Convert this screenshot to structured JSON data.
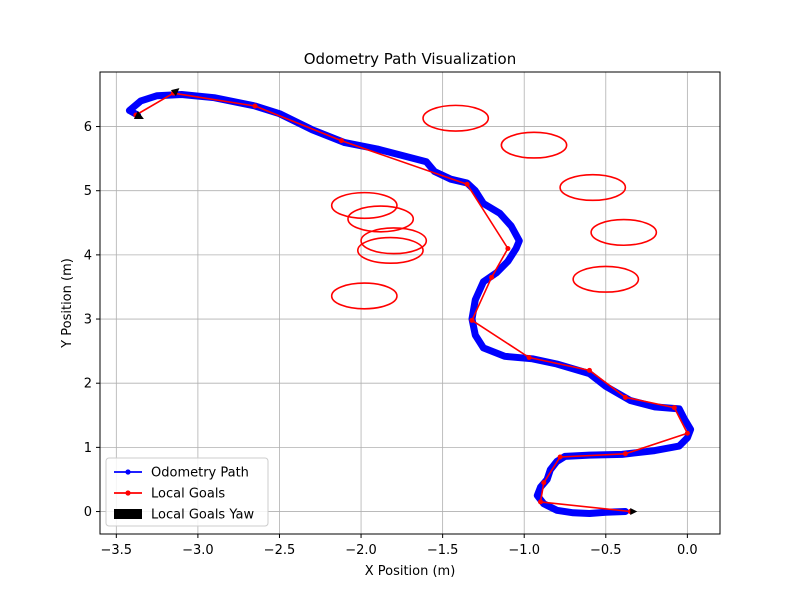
{
  "chart_data": {
    "type": "line",
    "title": "Odometry Path Visualization",
    "xlabel": "X Position (m)",
    "ylabel": "Y Position (m)",
    "xlim": [
      -3.6,
      0.2
    ],
    "ylim": [
      -0.35,
      6.85
    ],
    "xticks": [
      -3.5,
      -3.0,
      -2.5,
      -2.0,
      -1.5,
      -1.0,
      -0.5,
      0.0
    ],
    "xtick_labels": [
      "−3.5",
      "−3.0",
      "−2.5",
      "−2.0",
      "−1.5",
      "−1.0",
      "−0.5",
      "0.0"
    ],
    "yticks": [
      0,
      1,
      2,
      3,
      4,
      5,
      6
    ],
    "ytick_labels": [
      "0",
      "1",
      "2",
      "3",
      "4",
      "5",
      "6"
    ],
    "grid": true,
    "legend_position": "lower-left",
    "legend": [
      {
        "label": "Odometry Path",
        "color": "#0000ff",
        "kind": "line-marker"
      },
      {
        "label": "Local Goals",
        "color": "#ff0000",
        "kind": "line-marker"
      },
      {
        "label": "Local Goals Yaw",
        "color": "#000000",
        "kind": "patch"
      }
    ],
    "series": [
      {
        "name": "Odometry Path",
        "color": "#0000ff",
        "points": [
          [
            -0.38,
            0.0
          ],
          [
            -0.5,
            -0.01
          ],
          [
            -0.6,
            -0.03
          ],
          [
            -0.7,
            -0.02
          ],
          [
            -0.8,
            0.02
          ],
          [
            -0.88,
            0.12
          ],
          [
            -0.92,
            0.25
          ],
          [
            -0.9,
            0.38
          ],
          [
            -0.86,
            0.5
          ],
          [
            -0.84,
            0.65
          ],
          [
            -0.8,
            0.78
          ],
          [
            -0.75,
            0.86
          ],
          [
            -0.6,
            0.88
          ],
          [
            -0.4,
            0.89
          ],
          [
            -0.2,
            0.95
          ],
          [
            -0.05,
            1.02
          ],
          [
            0.0,
            1.15
          ],
          [
            0.02,
            1.28
          ],
          [
            -0.02,
            1.45
          ],
          [
            -0.05,
            1.6
          ],
          [
            -0.2,
            1.63
          ],
          [
            -0.35,
            1.73
          ],
          [
            -0.5,
            1.95
          ],
          [
            -0.6,
            2.15
          ],
          [
            -0.8,
            2.3
          ],
          [
            -0.95,
            2.38
          ],
          [
            -1.12,
            2.42
          ],
          [
            -1.25,
            2.55
          ],
          [
            -1.3,
            2.75
          ],
          [
            -1.32,
            3.0
          ],
          [
            -1.3,
            3.3
          ],
          [
            -1.25,
            3.58
          ],
          [
            -1.17,
            3.72
          ],
          [
            -1.1,
            3.9
          ],
          [
            -1.05,
            4.1
          ],
          [
            -1.03,
            4.22
          ],
          [
            -1.08,
            4.45
          ],
          [
            -1.15,
            4.65
          ],
          [
            -1.25,
            4.8
          ],
          [
            -1.3,
            5.0
          ],
          [
            -1.35,
            5.12
          ],
          [
            -1.45,
            5.18
          ],
          [
            -1.55,
            5.3
          ],
          [
            -1.6,
            5.45
          ],
          [
            -1.75,
            5.55
          ],
          [
            -1.9,
            5.65
          ],
          [
            -2.1,
            5.75
          ],
          [
            -2.3,
            5.95
          ],
          [
            -2.5,
            6.2
          ],
          [
            -2.65,
            6.32
          ],
          [
            -2.9,
            6.45
          ],
          [
            -3.1,
            6.5
          ],
          [
            -3.25,
            6.48
          ],
          [
            -3.35,
            6.4
          ],
          [
            -3.42,
            6.25
          ],
          [
            -3.37,
            6.18
          ]
        ]
      },
      {
        "name": "Local Goals",
        "color": "#ff0000",
        "points": [
          [
            -0.35,
            0.0
          ],
          [
            -0.9,
            0.15
          ],
          [
            -0.88,
            0.45
          ],
          [
            -0.78,
            0.85
          ],
          [
            -0.38,
            0.9
          ],
          [
            0.0,
            1.22
          ],
          [
            -0.08,
            1.62
          ],
          [
            -0.38,
            1.78
          ],
          [
            -0.6,
            2.2
          ],
          [
            -0.97,
            2.4
          ],
          [
            -1.32,
            2.98
          ],
          [
            -1.2,
            3.65
          ],
          [
            -1.1,
            4.1
          ],
          [
            -1.35,
            5.1
          ],
          [
            -2.12,
            5.78
          ],
          [
            -2.65,
            6.32
          ],
          [
            -3.15,
            6.52
          ],
          [
            -3.38,
            6.18
          ]
        ]
      }
    ],
    "obstacles": [
      {
        "cx": -1.42,
        "cy": 6.13,
        "rx": 0.2,
        "ry": 0.2
      },
      {
        "cx": -0.94,
        "cy": 5.71,
        "rx": 0.2,
        "ry": 0.2
      },
      {
        "cx": -0.58,
        "cy": 5.05,
        "rx": 0.2,
        "ry": 0.2
      },
      {
        "cx": -1.98,
        "cy": 4.77,
        "rx": 0.2,
        "ry": 0.2
      },
      {
        "cx": -1.88,
        "cy": 4.56,
        "rx": 0.2,
        "ry": 0.2
      },
      {
        "cx": -0.39,
        "cy": 4.35,
        "rx": 0.2,
        "ry": 0.2
      },
      {
        "cx": -1.8,
        "cy": 4.22,
        "rx": 0.2,
        "ry": 0.2
      },
      {
        "cx": -1.82,
        "cy": 4.07,
        "rx": 0.2,
        "ry": 0.2
      },
      {
        "cx": -0.5,
        "cy": 3.62,
        "rx": 0.2,
        "ry": 0.2
      },
      {
        "cx": -1.98,
        "cy": 3.36,
        "rx": 0.2,
        "ry": 0.2
      }
    ]
  }
}
